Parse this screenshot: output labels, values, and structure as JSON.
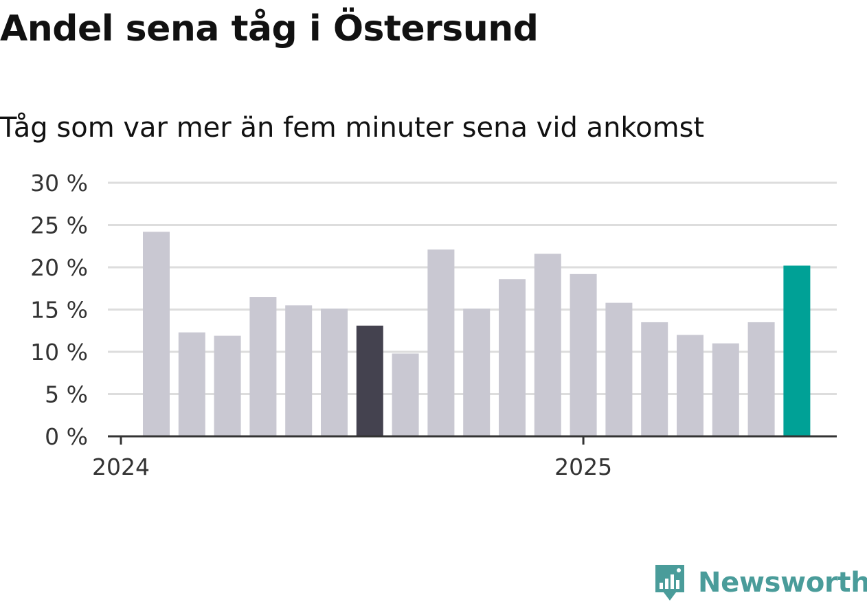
{
  "header": {
    "title": "Andel sena tåg i Östersund",
    "subtitle": "Tåg som var mer än fem minuter sena vid ankomst"
  },
  "logo": {
    "text": "Newsworthy",
    "icon": "newsworthy-bar-chart-icon"
  },
  "colors": {
    "bar_default": "#c9c8d2",
    "bar_highlight_dark": "#44424f",
    "bar_highlight_current": "#00a196",
    "grid": "#dddddd",
    "axis": "#333333",
    "brand": "#4a9c9a"
  },
  "chart_data": {
    "type": "bar",
    "title": "Andel sena tåg i Östersund",
    "subtitle": "Tåg som var mer än fem minuter sena vid ankomst",
    "xlabel": "",
    "ylabel": "",
    "unit": "%",
    "ylim": [
      0,
      30
    ],
    "yticks": [
      0,
      5,
      10,
      15,
      20,
      25,
      30
    ],
    "ytick_labels": [
      "0 %",
      "5 %",
      "10 %",
      "15 %",
      "20 %",
      "25 %",
      "30 %"
    ],
    "x_tick_labels": [
      {
        "label": "2024",
        "at_bar_index": 0
      },
      {
        "label": "2025",
        "at_bar_index": 12
      }
    ],
    "grid": true,
    "legend": "none",
    "values": [
      24.2,
      12.3,
      11.9,
      16.5,
      15.5,
      15.1,
      13.1,
      9.8,
      22.1,
      15.1,
      18.6,
      21.6,
      19.2,
      15.8,
      13.5,
      12.0,
      11.0,
      13.5,
      20.2
    ],
    "highlights": [
      {
        "index": 6,
        "color": "#44424f"
      },
      {
        "index": 18,
        "color": "#00a196"
      }
    ]
  }
}
